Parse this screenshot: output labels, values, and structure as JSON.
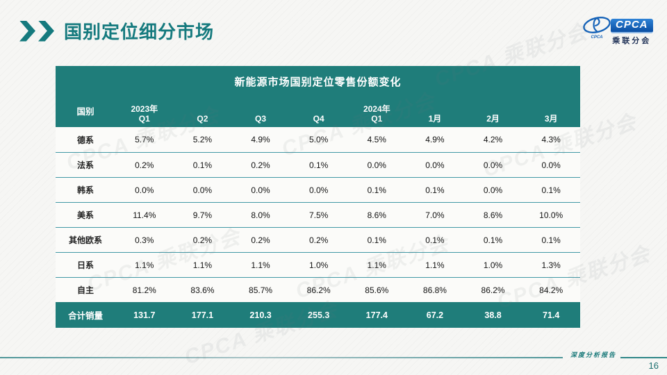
{
  "page": {
    "title": "国别定位细分市场",
    "footer_label": "深度分析报告",
    "page_number": "16"
  },
  "logo": {
    "badge_text": "CPCA",
    "cn_name": "乘联分会",
    "swoosh_small_text": "CPCA"
  },
  "watermark": {
    "text": "CPCA 乘联分会"
  },
  "table": {
    "title": "新能源市场国别定位零售份额变化",
    "country_header": "国别",
    "col_headers": [
      {
        "top": "2023年",
        "bottom": "Q1"
      },
      {
        "top": "",
        "bottom": "Q2"
      },
      {
        "top": "",
        "bottom": "Q3"
      },
      {
        "top": "",
        "bottom": "Q4"
      },
      {
        "top": "2024年",
        "bottom": "Q1"
      },
      {
        "top": "",
        "bottom": "1月"
      },
      {
        "top": "",
        "bottom": "2月"
      },
      {
        "top": "",
        "bottom": "3月"
      }
    ],
    "rows": [
      {
        "label": "德系",
        "values": [
          "5.7%",
          "5.2%",
          "4.9%",
          "5.0%",
          "4.5%",
          "4.9%",
          "4.2%",
          "4.3%"
        ]
      },
      {
        "label": "法系",
        "values": [
          "0.2%",
          "0.1%",
          "0.2%",
          "0.1%",
          "0.0%",
          "0.0%",
          "0.0%",
          "0.0%"
        ]
      },
      {
        "label": "韩系",
        "values": [
          "0.0%",
          "0.0%",
          "0.0%",
          "0.0%",
          "0.1%",
          "0.1%",
          "0.0%",
          "0.1%"
        ]
      },
      {
        "label": "美系",
        "values": [
          "11.4%",
          "9.7%",
          "8.0%",
          "7.5%",
          "8.6%",
          "7.0%",
          "8.6%",
          "10.0%"
        ]
      },
      {
        "label": "其他欧系",
        "values": [
          "0.3%",
          "0.2%",
          "0.2%",
          "0.2%",
          "0.1%",
          "0.1%",
          "0.1%",
          "0.1%"
        ]
      },
      {
        "label": "日系",
        "values": [
          "1.1%",
          "1.1%",
          "1.1%",
          "1.0%",
          "1.1%",
          "1.1%",
          "1.0%",
          "1.3%"
        ]
      },
      {
        "label": "自主",
        "values": [
          "81.2%",
          "83.6%",
          "85.7%",
          "86.2%",
          "85.6%",
          "86.8%",
          "86.2%",
          "84.2%"
        ]
      }
    ],
    "total_row": {
      "label": "合计销量",
      "values": [
        "131.7",
        "177.1",
        "210.3",
        "255.3",
        "177.4",
        "67.2",
        "38.8",
        "71.4"
      ]
    }
  },
  "colors": {
    "teal_accent": "#157a7e",
    "table_header_bg": "#1f7d7a",
    "row_separator": "#4097a5",
    "logo_blue": "#0a4ea3"
  },
  "chart_data": {
    "type": "table",
    "title": "新能源市场国别定位零售份额变化",
    "categories": [
      "2023年Q1",
      "2023年Q2",
      "2023年Q3",
      "2023年Q4",
      "2024年Q1",
      "2024年1月",
      "2024年2月",
      "2024年3月"
    ],
    "series": [
      {
        "name": "德系",
        "values": [
          5.7,
          5.2,
          4.9,
          5.0,
          4.5,
          4.9,
          4.2,
          4.3
        ],
        "unit": "%"
      },
      {
        "name": "法系",
        "values": [
          0.2,
          0.1,
          0.2,
          0.1,
          0.0,
          0.0,
          0.0,
          0.0
        ],
        "unit": "%"
      },
      {
        "name": "韩系",
        "values": [
          0.0,
          0.0,
          0.0,
          0.0,
          0.1,
          0.1,
          0.0,
          0.1
        ],
        "unit": "%"
      },
      {
        "name": "美系",
        "values": [
          11.4,
          9.7,
          8.0,
          7.5,
          8.6,
          7.0,
          8.6,
          10.0
        ],
        "unit": "%"
      },
      {
        "name": "其他欧系",
        "values": [
          0.3,
          0.2,
          0.2,
          0.2,
          0.1,
          0.1,
          0.1,
          0.1
        ],
        "unit": "%"
      },
      {
        "name": "日系",
        "values": [
          1.1,
          1.1,
          1.1,
          1.0,
          1.1,
          1.1,
          1.0,
          1.3
        ],
        "unit": "%"
      },
      {
        "name": "自主",
        "values": [
          81.2,
          83.6,
          85.7,
          86.2,
          85.6,
          86.8,
          86.2,
          84.2
        ],
        "unit": "%"
      },
      {
        "name": "合计销量",
        "values": [
          131.7,
          177.1,
          210.3,
          255.3,
          177.4,
          67.2,
          38.8,
          71.4
        ],
        "unit": ""
      }
    ]
  }
}
